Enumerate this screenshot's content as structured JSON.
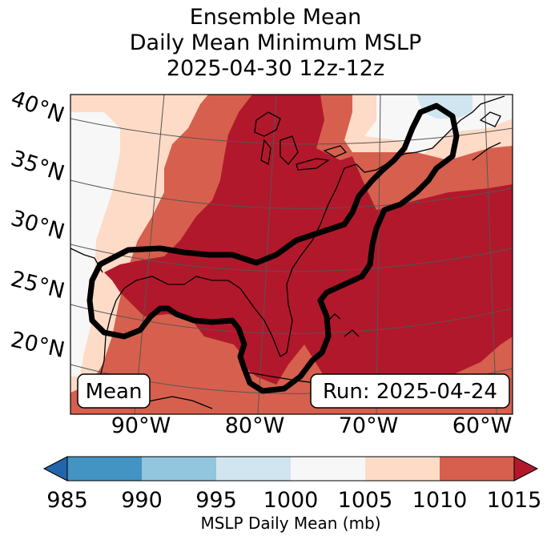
{
  "title": {
    "line1": "Ensemble Mean",
    "line2": "Daily Mean Minimum MSLP",
    "line3": "2025-04-30 12z-12z"
  },
  "map": {
    "lat_labels": [
      "40°N",
      "35°N",
      "30°N",
      "25°N",
      "20°N"
    ],
    "lon_labels": [
      "90°W",
      "80°W",
      "70°W",
      "60°W"
    ],
    "left_box": "Mean",
    "right_box": "Run: 2025-04-24",
    "contour_color": "#000000",
    "land_outline_color": "#000000"
  },
  "colorbar": {
    "ticks": [
      "985",
      "990",
      "995",
      "1000",
      "1005",
      "1010",
      "1015"
    ],
    "label": "MSLP Daily Mean (mb)",
    "bins": [
      {
        "range": "<985",
        "color": "#2166ac"
      },
      {
        "range": "985-990",
        "color": "#4393c3"
      },
      {
        "range": "990-995",
        "color": "#92c5de"
      },
      {
        "range": "995-1000",
        "color": "#d1e5f0"
      },
      {
        "range": "1000-1005",
        "color": "#f7f7f7"
      },
      {
        "range": "1005-1010",
        "color": "#fddbc7"
      },
      {
        "range": "1010-1015",
        "color": "#d6604d"
      },
      {
        "range": ">1015",
        "color": "#b2182b"
      }
    ]
  }
}
